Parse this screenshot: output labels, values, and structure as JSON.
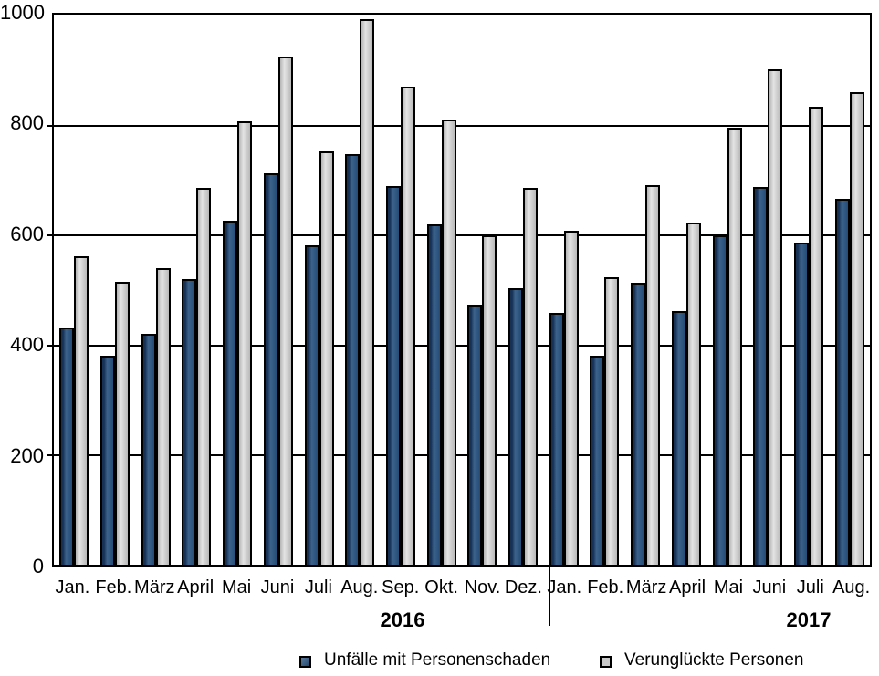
{
  "chart_data": {
    "type": "bar",
    "title": "",
    "xlabel": "",
    "ylabel": "",
    "ylim": [
      0,
      1000
    ],
    "yticks": [
      0,
      200,
      400,
      600,
      800,
      1000
    ],
    "grid": true,
    "legend_position": "bottom",
    "categories": [
      "Jan.",
      "Feb.",
      "März",
      "April",
      "Mai",
      "Juni",
      "Juli",
      "Aug.",
      "Sep.",
      "Okt.",
      "Nov.",
      "Dez.",
      "Jan.",
      "Feb.",
      "März",
      "April",
      "Mai",
      "Juni",
      "Juli",
      "Aug."
    ],
    "year_groups": [
      {
        "label": "2016",
        "start_index": 0,
        "end_index": 11
      },
      {
        "label": "2017",
        "start_index": 12,
        "end_index": 19
      }
    ],
    "series": [
      {
        "name": "Unfälle mit Personenschaden",
        "color": "#26517E",
        "values": [
          430,
          379,
          419,
          517,
          623,
          709,
          579,
          744,
          686,
          617,
          471,
          500,
          457,
          379,
          510,
          459,
          596,
          684,
          583,
          663
        ]
      },
      {
        "name": "Verunglückte Personen",
        "color": "#C9C9C9",
        "values": [
          559,
          513,
          538,
          683,
          803,
          920,
          748,
          988,
          866,
          807,
          597,
          683,
          605,
          520,
          688,
          620,
          792,
          898,
          829,
          856
        ]
      }
    ]
  },
  "colors": {
    "axis": "#000000",
    "bar_border": "#000000",
    "background": "#FFFFFF",
    "text": "#000000"
  }
}
